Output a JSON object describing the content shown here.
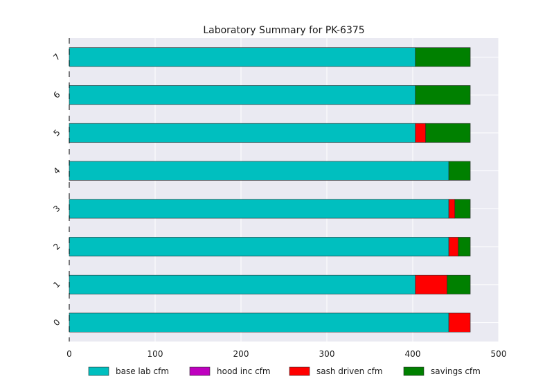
{
  "chart_data": {
    "type": "bar",
    "orientation": "horizontal",
    "stacked": true,
    "title": "Laboratory Summary for PK-6375",
    "xlabel": "",
    "ylabel": "",
    "xlim": [
      0,
      500
    ],
    "x_ticks": [
      "0",
      "100",
      "200",
      "300",
      "400",
      "500"
    ],
    "categories": [
      "0",
      "1",
      "2",
      "3",
      "4",
      "5",
      "6",
      "7"
    ],
    "series": [
      {
        "name": "base lab cfm",
        "color": "#00bfbf",
        "values": [
          442,
          403,
          442,
          442,
          442,
          403,
          403,
          403
        ]
      },
      {
        "name": "hood inc cfm",
        "color": "#bf00bf",
        "values": [
          0,
          0,
          0,
          0,
          0,
          0,
          0,
          0
        ]
      },
      {
        "name": "sash driven cfm",
        "color": "#ff0000",
        "values": [
          25,
          37,
          11,
          7,
          0,
          12,
          0,
          0
        ]
      },
      {
        "name": "savings cfm",
        "color": "#008000",
        "values": [
          0,
          27,
          14,
          18,
          25,
          52,
          64,
          64
        ]
      }
    ],
    "grid": true,
    "legend_position": "bottom"
  }
}
